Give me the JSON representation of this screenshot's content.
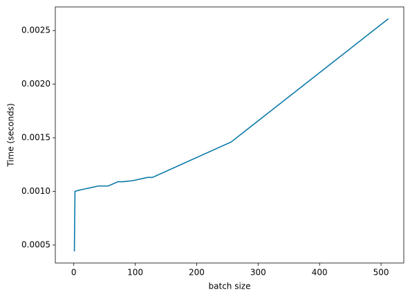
{
  "chart_data": {
    "type": "line",
    "x_label": "batch size",
    "y_label": "Time (seconds)",
    "x": [
      1,
      2,
      8,
      16,
      32,
      40,
      56,
      64,
      72,
      80,
      96,
      112,
      120,
      128,
      256,
      512
    ],
    "series": [
      {
        "name": "time",
        "color": "#0a78a8",
        "values": [
          0.00044,
          0.001,
          0.00101,
          0.00102,
          0.00104,
          0.00105,
          0.00105,
          0.00107,
          0.00109,
          0.00109,
          0.0011,
          0.00112,
          0.00113,
          0.00113,
          0.00146,
          0.00261
        ]
      }
    ],
    "xlim": [
      -30,
      537
    ],
    "ylim": [
      0.000332,
      0.00272
    ],
    "xticks": [
      0,
      100,
      200,
      300,
      400,
      500
    ],
    "yticks": [
      0.0005,
      {
        "value": 0.001,
        "label": "0.0010"
      },
      0.0015,
      {
        "value": 0.002,
        "label": "0.0020"
      },
      0.0025
    ]
  }
}
